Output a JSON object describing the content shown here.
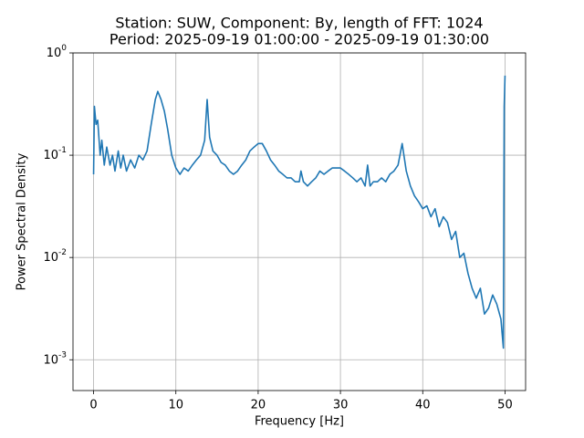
{
  "chart_data": {
    "type": "line",
    "title": [
      "Station: SUW, Component: By, length of FFT: 1024",
      "Period: 2025-09-19 01:00:00 - 2025-09-19 01:30:00"
    ],
    "xlabel": "Frequency [Hz]",
    "ylabel": "Power Spectral Density",
    "color": "#1f77b4",
    "grid": true,
    "yscale": "log",
    "xlim": [
      -2.5,
      52.5
    ],
    "ylim": [
      0.0005,
      1
    ],
    "xticks": [
      0,
      10,
      20,
      30,
      40,
      50
    ],
    "yticks": [
      {
        "value": 0.001,
        "label": "10^-3"
      },
      {
        "value": 0.01,
        "label": "10^-2"
      },
      {
        "value": 0.1,
        "label": "10^-1"
      },
      {
        "value": 1,
        "label": "10^0"
      }
    ],
    "x": [
      0,
      0.1,
      0.3,
      0.5,
      0.8,
      1,
      1.3,
      1.6,
      2,
      2.3,
      2.6,
      3,
      3.3,
      3.6,
      4,
      4.5,
      5,
      5.5,
      6,
      6.5,
      7,
      7.5,
      7.8,
      8.2,
      8.6,
      9,
      9.5,
      10,
      10.5,
      11,
      11.5,
      12,
      12.5,
      13,
      13.5,
      13.8,
      14.1,
      14.5,
      15,
      15.5,
      16,
      16.5,
      17,
      17.5,
      18,
      18.5,
      19,
      19.5,
      20,
      20.5,
      21,
      21.5,
      22,
      22.5,
      23,
      23.5,
      24,
      24.5,
      25,
      25.2,
      25.5,
      26,
      26.5,
      27,
      27.5,
      28,
      28.5,
      29,
      29.5,
      30,
      30.5,
      31,
      31.5,
      32,
      32.5,
      33,
      33.3,
      33.6,
      34,
      34.5,
      35,
      35.5,
      36,
      36.5,
      37,
      37.5,
      38,
      38.5,
      39,
      39.5,
      40,
      40.5,
      41,
      41.5,
      42,
      42.5,
      43,
      43.5,
      44,
      44.5,
      45,
      45.5,
      46,
      46.5,
      47,
      47.5,
      48,
      48.5,
      49,
      49.5,
      49.8,
      49.9,
      50
    ],
    "values": [
      0.065,
      0.3,
      0.2,
      0.22,
      0.1,
      0.14,
      0.08,
      0.12,
      0.08,
      0.1,
      0.07,
      0.11,
      0.075,
      0.1,
      0.07,
      0.09,
      0.075,
      0.1,
      0.09,
      0.11,
      0.2,
      0.35,
      0.42,
      0.35,
      0.27,
      0.18,
      0.1,
      0.075,
      0.065,
      0.075,
      0.07,
      0.08,
      0.09,
      0.1,
      0.14,
      0.35,
      0.15,
      0.11,
      0.1,
      0.085,
      0.08,
      0.07,
      0.065,
      0.07,
      0.08,
      0.09,
      0.11,
      0.12,
      0.13,
      0.13,
      0.11,
      0.09,
      0.08,
      0.07,
      0.065,
      0.06,
      0.06,
      0.055,
      0.055,
      0.07,
      0.055,
      0.05,
      0.055,
      0.06,
      0.07,
      0.065,
      0.07,
      0.075,
      0.075,
      0.075,
      0.07,
      0.065,
      0.06,
      0.055,
      0.06,
      0.05,
      0.08,
      0.05,
      0.055,
      0.055,
      0.06,
      0.055,
      0.065,
      0.07,
      0.08,
      0.13,
      0.07,
      0.05,
      0.04,
      0.035,
      0.03,
      0.032,
      0.025,
      0.03,
      0.02,
      0.025,
      0.022,
      0.015,
      0.018,
      0.01,
      0.011,
      0.007,
      0.005,
      0.004,
      0.005,
      0.0028,
      0.0032,
      0.0043,
      0.0035,
      0.0025,
      0.0013,
      0.3,
      0.6
    ]
  }
}
